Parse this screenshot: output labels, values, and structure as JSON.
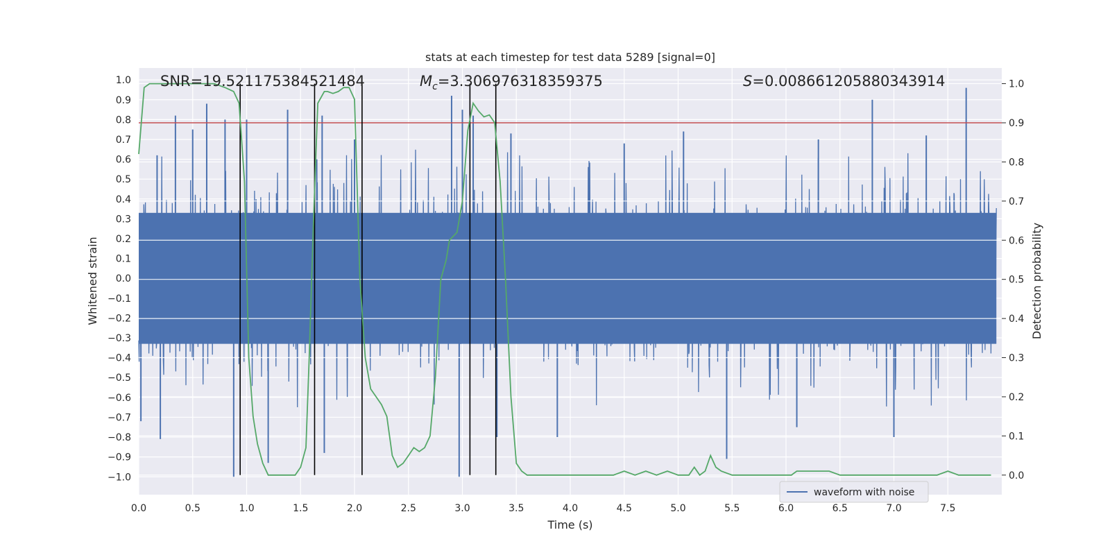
{
  "chart_data": {
    "type": "line",
    "title": "stats at each timestep for test data 5289 [signal=0]",
    "xlabel": "Time (s)",
    "ylabel_left": "Whitened strain",
    "ylabel_right": "Detection probability",
    "xlim": [
      0.0,
      8.0
    ],
    "ylim_left": [
      -1.09,
      1.06
    ],
    "ylim_right": [
      -0.05,
      1.04
    ],
    "x_ticks": [
      0.0,
      0.5,
      1.0,
      1.5,
      2.0,
      2.5,
      3.0,
      3.5,
      4.0,
      4.5,
      5.0,
      5.5,
      6.0,
      6.5,
      7.0,
      7.5
    ],
    "x_tick_labels": [
      "0.0",
      "0.5",
      "1.0",
      "1.5",
      "2.0",
      "2.5",
      "3.0",
      "3.5",
      "4.0",
      "4.5",
      "5.0",
      "5.5",
      "6.0",
      "6.5",
      "7.0",
      "7.5"
    ],
    "y_left_ticks": [
      1.0,
      0.9,
      0.8,
      0.7,
      0.6,
      0.5,
      0.4,
      0.3,
      0.2,
      0.1,
      0.0,
      -0.1,
      -0.2,
      -0.3,
      -0.4,
      -0.5,
      -0.6,
      -0.7,
      -0.8,
      -0.9,
      -1.0
    ],
    "y_left_tick_labels": [
      "1.0",
      "0.9",
      "0.8",
      "0.7",
      "0.6",
      "0.5",
      "0.4",
      "0.3",
      "0.2",
      "0.1",
      "0.0",
      "−0.1",
      "−0.2",
      "−0.3",
      "−0.4",
      "−0.5",
      "−0.6",
      "−0.7",
      "−0.8",
      "−0.9",
      "−1.0"
    ],
    "y_right_ticks": [
      1.0,
      0.9,
      0.8,
      0.7,
      0.6,
      0.5,
      0.4,
      0.3,
      0.2,
      0.1,
      0.0
    ],
    "y_right_tick_labels": [
      "1.0",
      "0.9",
      "0.8",
      "0.7",
      "0.6",
      "0.5",
      "0.4",
      "0.3",
      "0.2",
      "0.1",
      "0.0"
    ],
    "annotations": {
      "snr": "SNR=19.521175384521484",
      "mc_symbol": "M",
      "mc_subscript": "c",
      "mc_value": "=3.306976318359375",
      "s_symbol": "S",
      "s_value": "=0.008661205880343914"
    },
    "waveform": {
      "name": "waveform with noise",
      "color": "#4c72b0",
      "core_amplitude": 0.33,
      "peaks_up": [
        {
          "t": 0.17,
          "y": 0.62
        },
        {
          "t": 0.34,
          "y": 0.82
        },
        {
          "t": 0.5,
          "y": 0.75
        },
        {
          "t": 0.63,
          "y": 0.88
        },
        {
          "t": 0.8,
          "y": 0.8
        },
        {
          "t": 1.0,
          "y": 0.8
        },
        {
          "t": 1.38,
          "y": 0.85
        },
        {
          "t": 1.65,
          "y": 0.6
        },
        {
          "t": 1.7,
          "y": 0.82
        },
        {
          "t": 2.0,
          "y": 0.7
        },
        {
          "t": 2.9,
          "y": 0.92
        },
        {
          "t": 3.0,
          "y": 0.85
        },
        {
          "t": 3.1,
          "y": 0.82
        },
        {
          "t": 3.45,
          "y": 0.73
        },
        {
          "t": 4.5,
          "y": 0.68
        },
        {
          "t": 5.05,
          "y": 0.74
        },
        {
          "t": 6.3,
          "y": 0.7
        },
        {
          "t": 6.8,
          "y": 0.9
        },
        {
          "t": 7.3,
          "y": 0.72
        },
        {
          "t": 7.67,
          "y": 0.96
        }
      ],
      "peaks_down": [
        {
          "t": 0.02,
          "y": -0.72
        },
        {
          "t": 0.2,
          "y": -0.81
        },
        {
          "t": 0.88,
          "y": -1.0
        },
        {
          "t": 1.2,
          "y": -0.93
        },
        {
          "t": 1.72,
          "y": -0.88
        },
        {
          "t": 2.97,
          "y": -1.0
        },
        {
          "t": 3.32,
          "y": -0.8
        },
        {
          "t": 3.88,
          "y": -0.8
        },
        {
          "t": 5.45,
          "y": -0.91
        },
        {
          "t": 6.1,
          "y": -0.75
        },
        {
          "t": 7.0,
          "y": -0.8
        }
      ]
    },
    "detection_probability": {
      "color": "#55a868",
      "x": [
        0.0,
        0.05,
        0.1,
        0.2,
        0.3,
        0.4,
        0.5,
        0.6,
        0.7,
        0.8,
        0.88,
        0.93,
        0.98,
        1.02,
        1.06,
        1.1,
        1.15,
        1.2,
        1.25,
        1.3,
        1.35,
        1.4,
        1.45,
        1.5,
        1.55,
        1.58,
        1.62,
        1.66,
        1.72,
        1.75,
        1.8,
        1.85,
        1.9,
        1.95,
        2.0,
        2.05,
        2.1,
        2.15,
        2.2,
        2.25,
        2.3,
        2.35,
        2.4,
        2.45,
        2.5,
        2.55,
        2.6,
        2.65,
        2.7,
        2.75,
        2.8,
        2.85,
        2.88,
        2.95,
        3.0,
        3.05,
        3.1,
        3.15,
        3.2,
        3.25,
        3.3,
        3.35,
        3.4,
        3.45,
        3.5,
        3.55,
        3.6,
        3.65,
        3.7,
        3.8,
        3.9,
        4.0,
        4.1,
        4.2,
        4.3,
        4.4,
        4.5,
        4.6,
        4.7,
        4.8,
        4.9,
        5.0,
        5.05,
        5.1,
        5.15,
        5.2,
        5.25,
        5.3,
        5.35,
        5.4,
        5.5,
        5.6,
        5.7,
        5.8,
        5.9,
        6.0,
        6.05,
        6.1,
        6.2,
        6.3,
        6.4,
        6.5,
        6.6,
        6.8,
        7.0,
        7.2,
        7.4,
        7.5,
        7.6,
        7.7,
        7.9
      ],
      "y": [
        0.82,
        0.99,
        1.0,
        1.0,
        1.0,
        1.0,
        1.0,
        1.0,
        1.0,
        0.99,
        0.98,
        0.95,
        0.75,
        0.3,
        0.15,
        0.08,
        0.03,
        0.0,
        0.0,
        0.0,
        0.0,
        0.0,
        0.0,
        0.02,
        0.07,
        0.3,
        0.65,
        0.95,
        0.98,
        0.98,
        0.975,
        0.98,
        0.99,
        0.99,
        0.96,
        0.5,
        0.3,
        0.22,
        0.2,
        0.18,
        0.15,
        0.05,
        0.02,
        0.03,
        0.05,
        0.07,
        0.06,
        0.07,
        0.1,
        0.25,
        0.5,
        0.55,
        0.6,
        0.62,
        0.7,
        0.88,
        0.95,
        0.93,
        0.915,
        0.92,
        0.9,
        0.75,
        0.5,
        0.2,
        0.03,
        0.01,
        0.0,
        0.0,
        0.0,
        0.0,
        0.0,
        0.0,
        0.0,
        0.0,
        0.0,
        0.0,
        0.01,
        0.0,
        0.01,
        0.0,
        0.01,
        0.0,
        0.0,
        0.0,
        0.02,
        0.0,
        0.01,
        0.05,
        0.02,
        0.01,
        0.0,
        0.0,
        0.0,
        0.0,
        0.0,
        0.0,
        0.0,
        0.01,
        0.01,
        0.01,
        0.01,
        0.0,
        0.0,
        0.0,
        0.0,
        0.0,
        0.0,
        0.01,
        0.0,
        0.0,
        0.0
      ]
    },
    "threshold": {
      "value": 0.9,
      "color": "#c44e52"
    },
    "vertical_lines": [
      0.94,
      1.63,
      2.07,
      3.07,
      3.31
    ],
    "legend": {
      "label": "waveform with noise",
      "position": "lower-right"
    }
  },
  "colors": {
    "axes_bg": "#eaeaf2",
    "grid": "#ffffff",
    "vline": "#000000"
  }
}
